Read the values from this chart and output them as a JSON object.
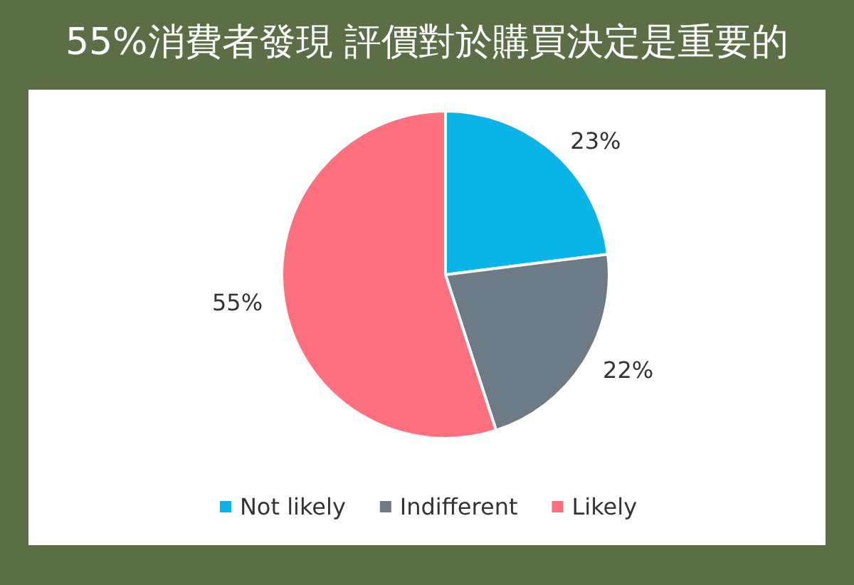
{
  "chart_data": {
    "type": "pie",
    "title": "55%消費者發現 評價對於購買決定是重要的",
    "categories": [
      "Not likely",
      "Indifferent",
      "Likely"
    ],
    "values": [
      23,
      22,
      55
    ],
    "colors": [
      "#0ab4e6",
      "#6c7b86",
      "#fc6f7e"
    ],
    "value_labels": [
      "23%",
      "22%",
      "55%"
    ],
    "legend": "bottom"
  }
}
